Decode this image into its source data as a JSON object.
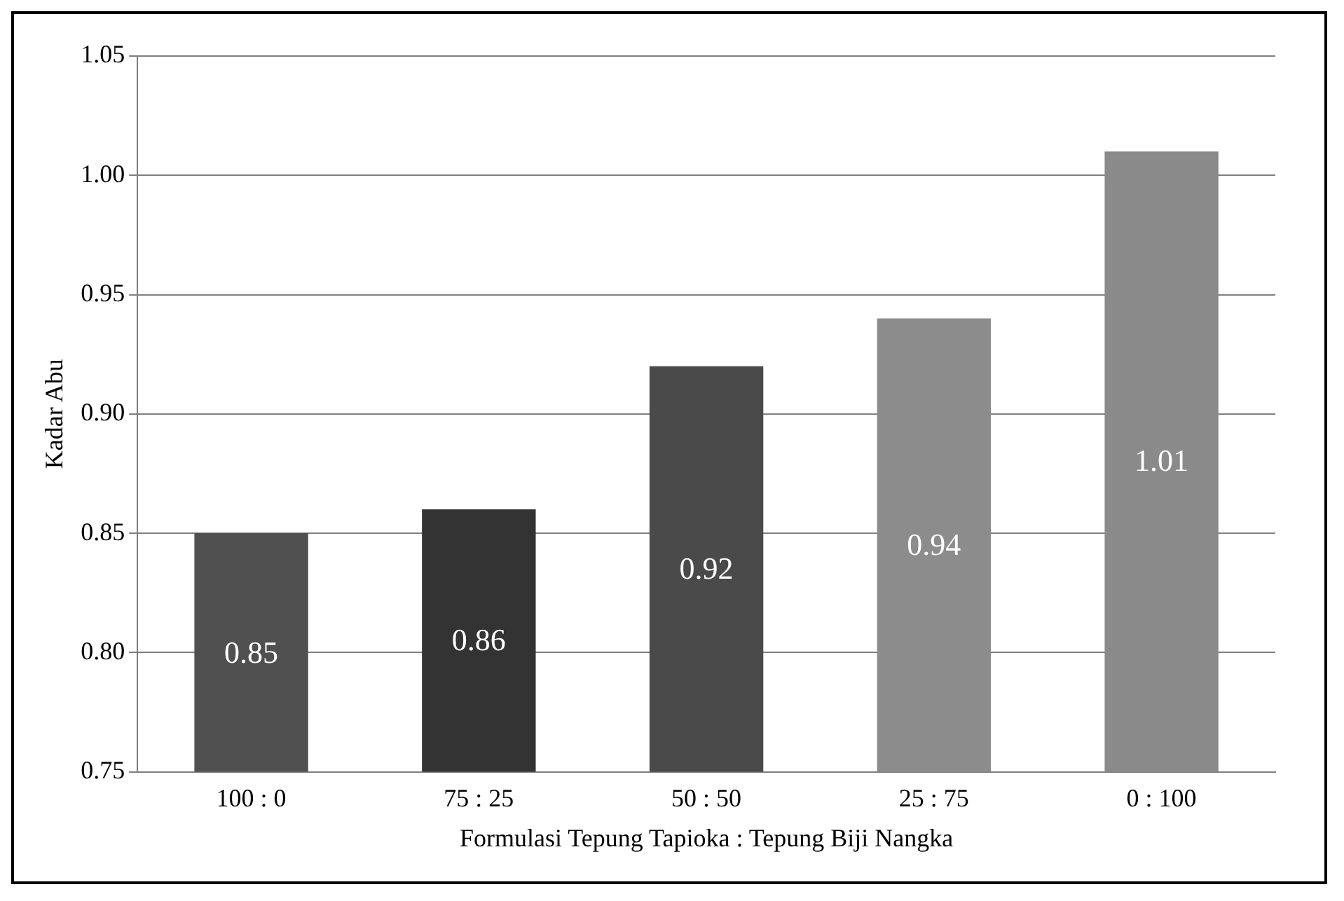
{
  "chart_data": {
    "type": "bar",
    "xlabel": "Formulasi Tepung Tapioka : Tepung Biji Nangka",
    "ylabel": "Kadar Abu",
    "categories": [
      "100 : 0",
      "75 : 25",
      "50 : 50",
      "25 : 75",
      "0 : 100"
    ],
    "values": [
      0.85,
      0.86,
      0.92,
      0.94,
      1.01
    ],
    "colors": [
      "#505050",
      "#333333",
      "#4a4a4a",
      "#8c8c8c",
      "#8a8a8a"
    ],
    "ylim": [
      0.75,
      1.05
    ],
    "yticks": [
      {
        "value": 0.75,
        "label": "0.75"
      },
      {
        "value": 0.8,
        "label": "0.80"
      },
      {
        "value": 0.85,
        "label": "0.85"
      },
      {
        "value": 0.9,
        "label": "0.90"
      },
      {
        "value": 0.95,
        "label": "0.95"
      },
      {
        "value": 1.0,
        "label": "1.00"
      },
      {
        "value": 1.05,
        "label": "1.05"
      }
    ],
    "grid": "y",
    "data_labels": true,
    "legend": false
  }
}
